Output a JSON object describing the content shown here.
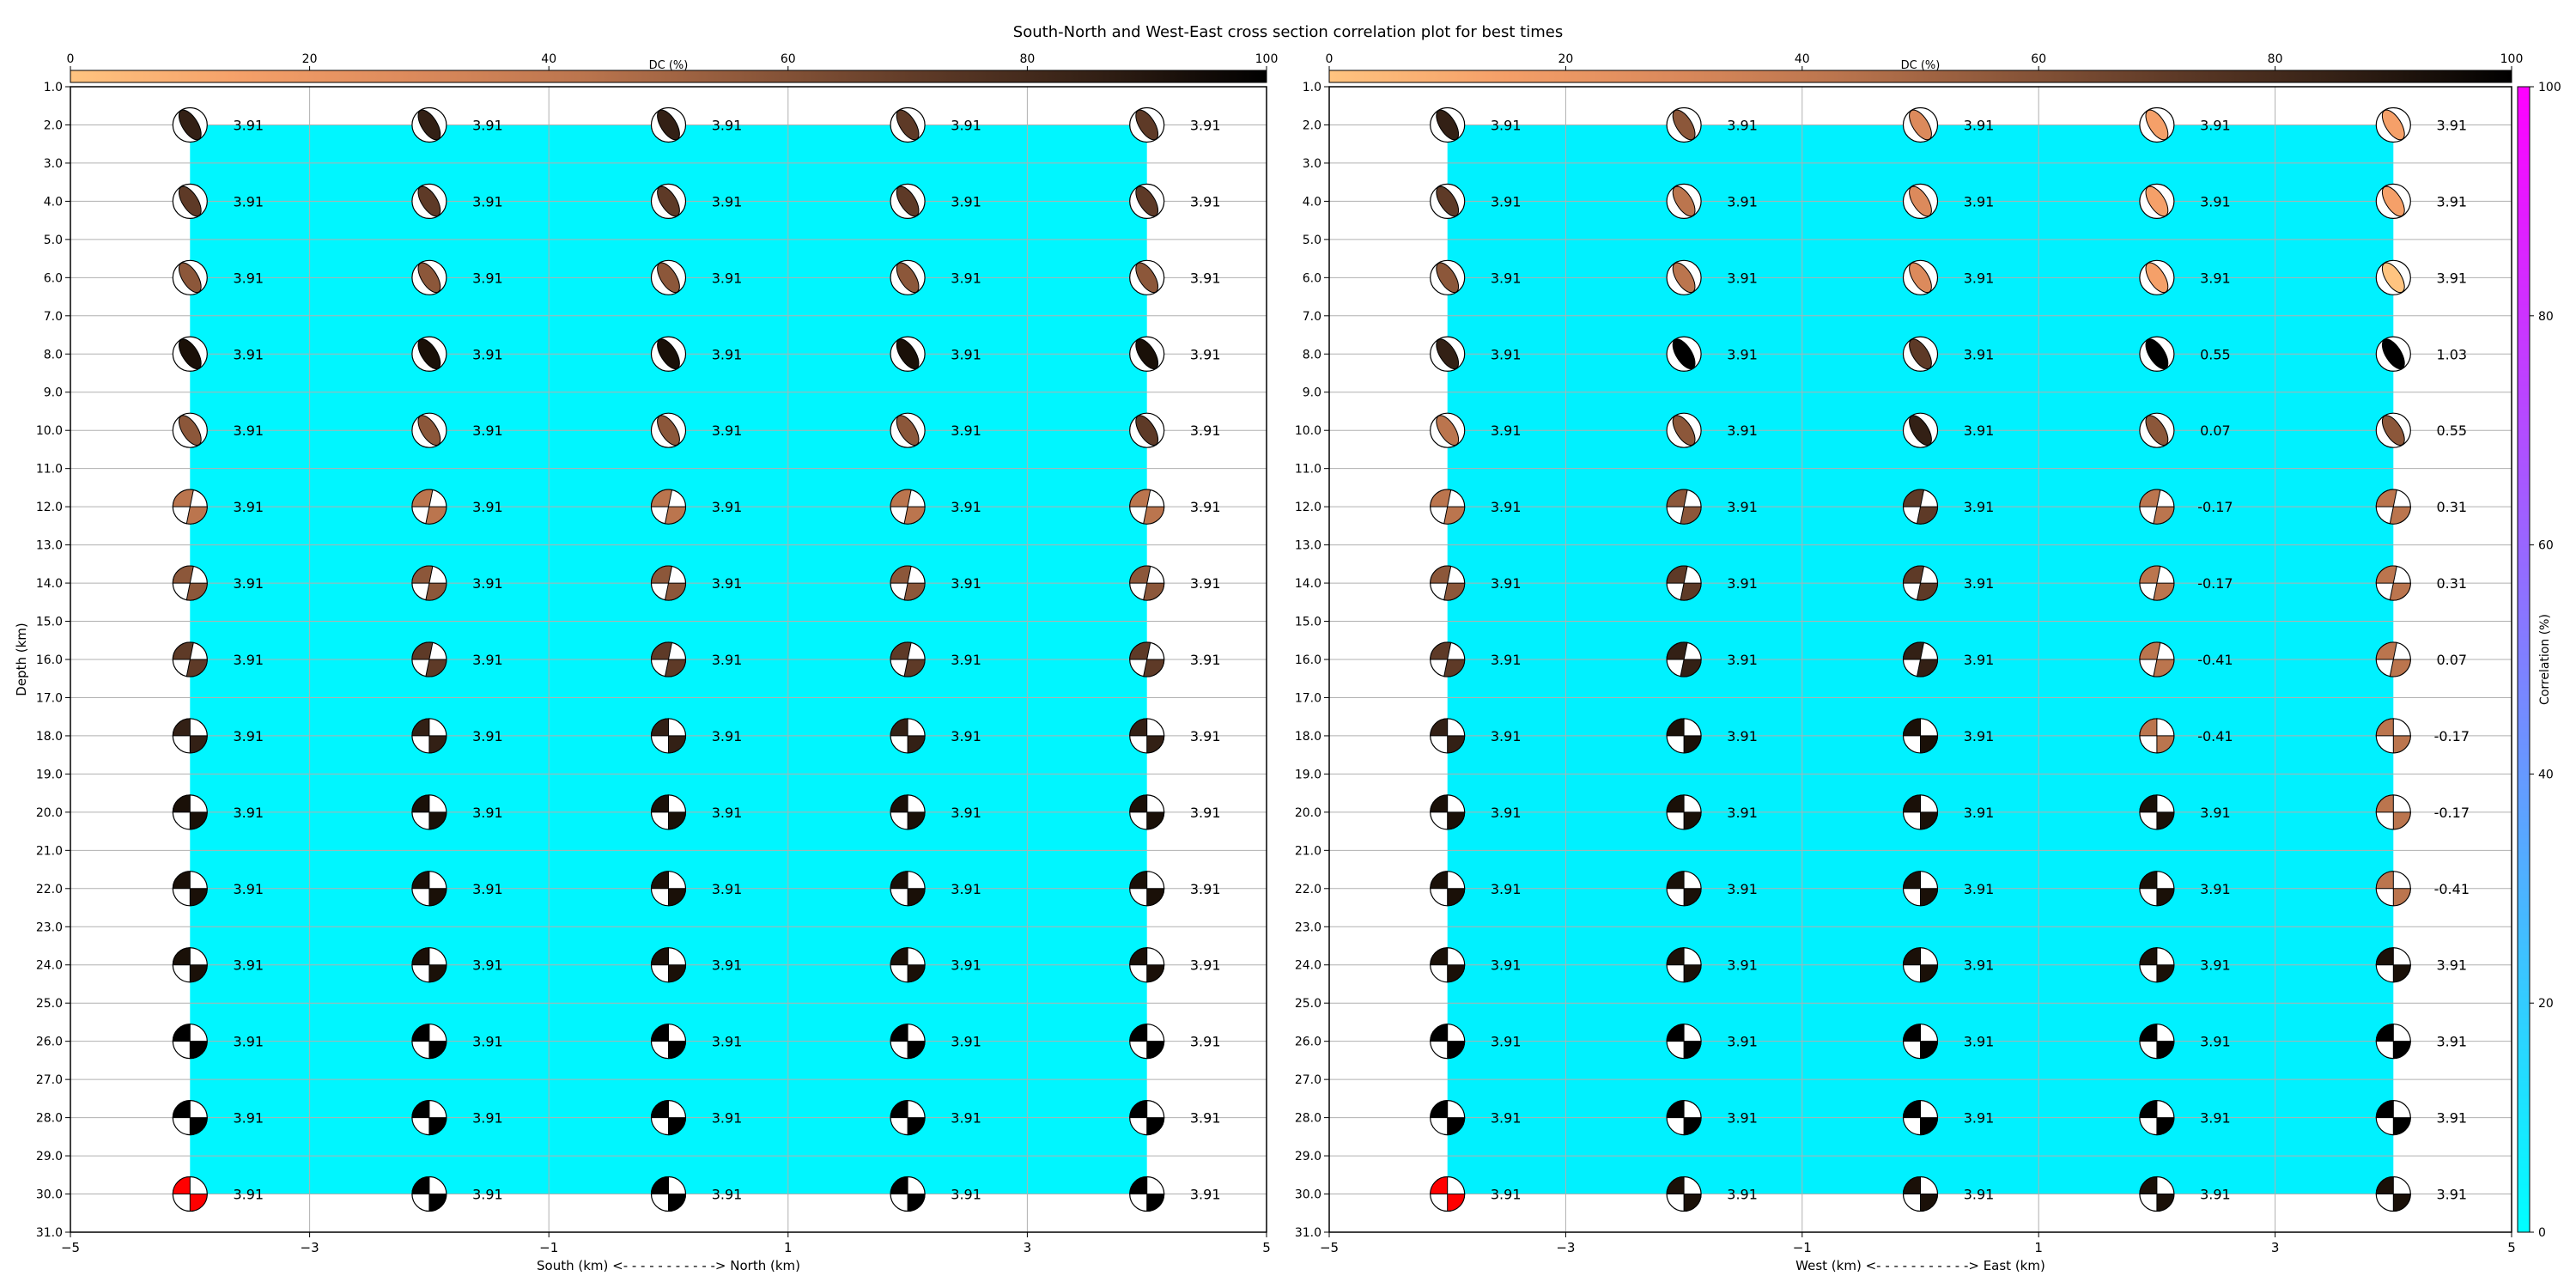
{
  "figure": {
    "title": "South-North and West-East cross section correlation plot for best times"
  },
  "colorbars": {
    "dc": {
      "label": "DC (%)",
      "ticks": [
        "0",
        "20",
        "40",
        "60",
        "80",
        "100"
      ],
      "range": [
        0,
        100
      ],
      "colors": [
        "#ffc480",
        "#f5a069",
        "#dc8a5c",
        "#bb754e",
        "#8c573a",
        "#5e3a27",
        "#332015",
        "#000000"
      ]
    },
    "correlation": {
      "label": "Correlation (%)",
      "ticks": [
        "0",
        "20",
        "40",
        "60",
        "80",
        "100"
      ],
      "range": [
        0,
        100
      ],
      "colors": [
        "#00ffff",
        "#ff00ff"
      ]
    }
  },
  "chart_data": [
    {
      "type": "heatmap",
      "panel": "south-north",
      "xlabel": "South (km) <- - - - - - - - - - -> North (km)",
      "ylabel": "Depth (km)",
      "xlim": [
        -5,
        5
      ],
      "ylim": [
        31,
        1
      ],
      "x_ticks": [
        "−5",
        "−3",
        "−1",
        "1",
        "3",
        "5"
      ],
      "y_ticks": [
        "1.0",
        "2.0",
        "3.0",
        "4.0",
        "5.0",
        "6.0",
        "7.0",
        "8.0",
        "9.0",
        "10.0",
        "11.0",
        "12.0",
        "13.0",
        "14.0",
        "15.0",
        "16.0",
        "17.0",
        "18.0",
        "19.0",
        "20.0",
        "21.0",
        "22.0",
        "23.0",
        "24.0",
        "25.0",
        "26.0",
        "27.0",
        "28.0",
        "29.0",
        "30.0",
        "31.0"
      ],
      "x_positions": [
        -4,
        -2,
        0,
        2,
        4
      ],
      "depths": [
        2,
        4,
        6,
        8,
        10,
        12,
        14,
        16,
        18,
        20,
        22,
        24,
        26,
        28,
        30
      ],
      "correlation_extent": {
        "x": [
          -4,
          4
        ],
        "depth": [
          2,
          30
        ],
        "value_pct": 3.91
      },
      "values": [
        [
          "3.91",
          "3.91",
          "3.91",
          "3.91",
          "3.91"
        ],
        [
          "3.91",
          "3.91",
          "3.91",
          "3.91",
          "3.91"
        ],
        [
          "3.91",
          "3.91",
          "3.91",
          "3.91",
          "3.91"
        ],
        [
          "3.91",
          "3.91",
          "3.91",
          "3.91",
          "3.91"
        ],
        [
          "3.91",
          "3.91",
          "3.91",
          "3.91",
          "3.91"
        ],
        [
          "3.91",
          "3.91",
          "3.91",
          "3.91",
          "3.91"
        ],
        [
          "3.91",
          "3.91",
          "3.91",
          "3.91",
          "3.91"
        ],
        [
          "3.91",
          "3.91",
          "3.91",
          "3.91",
          "3.91"
        ],
        [
          "3.91",
          "3.91",
          "3.91",
          "3.91",
          "3.91"
        ],
        [
          "3.91",
          "3.91",
          "3.91",
          "3.91",
          "3.91"
        ],
        [
          "3.91",
          "3.91",
          "3.91",
          "3.91",
          "3.91"
        ],
        [
          "3.91",
          "3.91",
          "3.91",
          "3.91",
          "3.91"
        ],
        [
          "3.91",
          "3.91",
          "3.91",
          "3.91",
          "3.91"
        ],
        [
          "3.91",
          "3.91",
          "3.91",
          "3.91",
          "3.91"
        ],
        [
          "3.91",
          "3.91",
          "3.91",
          "3.91",
          "3.91"
        ]
      ],
      "beachball_colors": [
        [
          "#332015",
          "#332015",
          "#332015",
          "#5e3a27",
          "#5e3a27"
        ],
        [
          "#5e3a27",
          "#5e3a27",
          "#5e3a27",
          "#5e3a27",
          "#5e3a27"
        ],
        [
          "#8c573a",
          "#8c573a",
          "#8c573a",
          "#8c573a",
          "#8c573a"
        ],
        [
          "#1a1008",
          "#1a1008",
          "#1a1008",
          "#1a1008",
          "#1a1008"
        ],
        [
          "#8c573a",
          "#8c573a",
          "#8c573a",
          "#8c573a",
          "#5e3a27"
        ],
        [
          "#bb754e",
          "#bb754e",
          "#bb754e",
          "#bb754e",
          "#bb754e"
        ],
        [
          "#8c573a",
          "#8c573a",
          "#8c573a",
          "#8c573a",
          "#8c573a"
        ],
        [
          "#5e3a27",
          "#5e3a27",
          "#5e3a27",
          "#5e3a27",
          "#5e3a27"
        ],
        [
          "#332015",
          "#332015",
          "#332015",
          "#332015",
          "#332015"
        ],
        [
          "#1a1008",
          "#1a1008",
          "#1a1008",
          "#1a1008",
          "#1a1008"
        ],
        [
          "#1a1008",
          "#1a1008",
          "#1a1008",
          "#1a1008",
          "#1a1008"
        ],
        [
          "#1a1008",
          "#1a1008",
          "#1a1008",
          "#1a1008",
          "#1a1008"
        ],
        [
          "#000000",
          "#000000",
          "#000000",
          "#000000",
          "#000000"
        ],
        [
          "#000000",
          "#000000",
          "#000000",
          "#000000",
          "#000000"
        ],
        [
          "#ff0000",
          "#000000",
          "#000000",
          "#000000",
          "#000000"
        ]
      ]
    },
    {
      "type": "heatmap",
      "panel": "west-east",
      "xlabel": "West (km) <- - - - - - - - - - -> East (km)",
      "ylabel": "",
      "xlim": [
        -5,
        5
      ],
      "ylim": [
        31,
        1
      ],
      "x_ticks": [
        "−5",
        "−3",
        "−1",
        "1",
        "3",
        "5"
      ],
      "y_ticks": [
        "1.0",
        "2.0",
        "3.0",
        "4.0",
        "5.0",
        "6.0",
        "7.0",
        "8.0",
        "9.0",
        "10.0",
        "11.0",
        "12.0",
        "13.0",
        "14.0",
        "15.0",
        "16.0",
        "17.0",
        "18.0",
        "19.0",
        "20.0",
        "21.0",
        "22.0",
        "23.0",
        "24.0",
        "25.0",
        "26.0",
        "27.0",
        "28.0",
        "29.0",
        "30.0",
        "31.0"
      ],
      "x_positions": [
        -4,
        -2,
        0,
        2,
        4
      ],
      "depths": [
        2,
        4,
        6,
        8,
        10,
        12,
        14,
        16,
        18,
        20,
        22,
        24,
        26,
        28,
        30
      ],
      "correlation_extent": {
        "x": [
          -4,
          4
        ],
        "depth": [
          2,
          30
        ],
        "value_pct": 3.91
      },
      "values": [
        [
          "3.91",
          "3.91",
          "3.91",
          "3.91",
          "3.91"
        ],
        [
          "3.91",
          "3.91",
          "3.91",
          "3.91",
          "3.91"
        ],
        [
          "3.91",
          "3.91",
          "3.91",
          "3.91",
          "3.91"
        ],
        [
          "3.91",
          "3.91",
          "3.91",
          "0.55",
          "1.03"
        ],
        [
          "3.91",
          "3.91",
          "3.91",
          "0.07",
          "0.55"
        ],
        [
          "3.91",
          "3.91",
          "3.91",
          "-0.17",
          "0.31"
        ],
        [
          "3.91",
          "3.91",
          "3.91",
          "-0.17",
          "0.31"
        ],
        [
          "3.91",
          "3.91",
          "3.91",
          "-0.41",
          "0.07"
        ],
        [
          "3.91",
          "3.91",
          "3.91",
          "-0.41",
          "-0.17"
        ],
        [
          "3.91",
          "3.91",
          "3.91",
          "3.91",
          "-0.17"
        ],
        [
          "3.91",
          "3.91",
          "3.91",
          "3.91",
          "-0.41"
        ],
        [
          "3.91",
          "3.91",
          "3.91",
          "3.91",
          "3.91"
        ],
        [
          "3.91",
          "3.91",
          "3.91",
          "3.91",
          "3.91"
        ],
        [
          "3.91",
          "3.91",
          "3.91",
          "3.91",
          "3.91"
        ],
        [
          "3.91",
          "3.91",
          "3.91",
          "3.91",
          "3.91"
        ]
      ],
      "beachball_colors": [
        [
          "#332015",
          "#8c573a",
          "#dc8a5c",
          "#f5a069",
          "#f5a069"
        ],
        [
          "#5e3a27",
          "#bb754e",
          "#dc8a5c",
          "#f5a069",
          "#f5a069"
        ],
        [
          "#8c573a",
          "#bb754e",
          "#dc8a5c",
          "#f5a069",
          "#ffc480"
        ],
        [
          "#332015",
          "#000000",
          "#5e3a27",
          "#000000",
          "#000000"
        ],
        [
          "#bb754e",
          "#8c573a",
          "#332015",
          "#8c573a",
          "#8c573a"
        ],
        [
          "#bb754e",
          "#8c573a",
          "#5e3a27",
          "#bb754e",
          "#bb754e"
        ],
        [
          "#8c573a",
          "#5e3a27",
          "#5e3a27",
          "#bb754e",
          "#bb754e"
        ],
        [
          "#5e3a27",
          "#332015",
          "#332015",
          "#bb754e",
          "#bb754e"
        ],
        [
          "#332015",
          "#1a1008",
          "#1a1008",
          "#bb754e",
          "#bb754e"
        ],
        [
          "#1a1008",
          "#1a1008",
          "#1a1008",
          "#1a1008",
          "#bb754e"
        ],
        [
          "#1a1008",
          "#1a1008",
          "#1a1008",
          "#1a1008",
          "#bb754e"
        ],
        [
          "#1a1008",
          "#1a1008",
          "#1a1008",
          "#1a1008",
          "#1a1008"
        ],
        [
          "#000000",
          "#000000",
          "#000000",
          "#000000",
          "#000000"
        ],
        [
          "#000000",
          "#000000",
          "#000000",
          "#000000",
          "#000000"
        ],
        [
          "#ff0000",
          "#1a1008",
          "#1a1008",
          "#1a1008",
          "#1a1008"
        ]
      ]
    }
  ]
}
